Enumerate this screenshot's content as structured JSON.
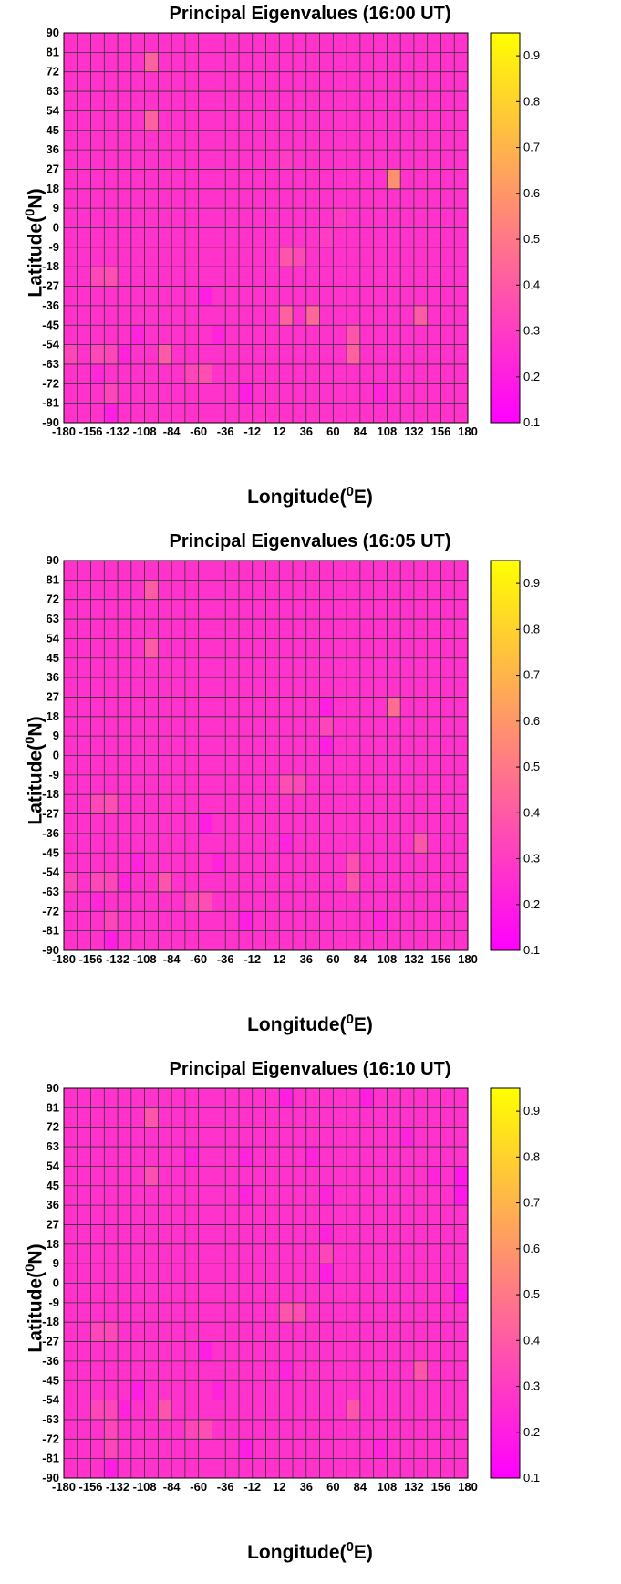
{
  "chart_data": [
    {
      "type": "heatmap",
      "title": "Principal Eigenvalues (16:00 UT)",
      "xlabel": "Longitude(0E)",
      "ylabel": "Latitude(0N)",
      "xlim": [
        -180,
        180
      ],
      "ylim": [
        -90,
        90
      ],
      "x_ticks": [
        -180,
        -156,
        -132,
        -108,
        -84,
        -60,
        -36,
        -12,
        12,
        36,
        60,
        84,
        108,
        132,
        156,
        180
      ],
      "y_ticks": [
        90,
        81,
        72,
        63,
        54,
        45,
        36,
        27,
        18,
        9,
        0,
        -9,
        -18,
        -27,
        -36,
        -45,
        -54,
        -63,
        -72,
        -81,
        -90
      ],
      "colorbar": {
        "range": [
          0.1,
          0.95
        ],
        "ticks": [
          0.1,
          0.2,
          0.3,
          0.4,
          0.5,
          0.6,
          0.7,
          0.8,
          0.9
        ]
      },
      "cell_width_deg": 12,
      "cell_height_deg": 9,
      "base_value": 0.27,
      "cells": [
        {
          "lon": -102,
          "lat": 76.5,
          "value": 0.42
        },
        {
          "lon": -102,
          "lat": 49.5,
          "value": 0.42
        },
        {
          "lon": 114,
          "lat": 22.5,
          "value": 0.58
        },
        {
          "lon": 18,
          "lat": -13.5,
          "value": 0.38
        },
        {
          "lon": 30,
          "lat": -13.5,
          "value": 0.34
        },
        {
          "lon": -150,
          "lat": -22.5,
          "value": 0.34
        },
        {
          "lon": -138,
          "lat": -22.5,
          "value": 0.36
        },
        {
          "lon": -54,
          "lat": -31.5,
          "value": 0.2
        },
        {
          "lon": 18,
          "lat": -40.5,
          "value": 0.42
        },
        {
          "lon": 42,
          "lat": -40.5,
          "value": 0.44
        },
        {
          "lon": 138,
          "lat": -40.5,
          "value": 0.4
        },
        {
          "lon": -114,
          "lat": -49.5,
          "value": 0.22
        },
        {
          "lon": -42,
          "lat": -49.5,
          "value": 0.22
        },
        {
          "lon": 78,
          "lat": -49.5,
          "value": 0.38
        },
        {
          "lon": -174,
          "lat": -58.5,
          "value": 0.33
        },
        {
          "lon": -150,
          "lat": -58.5,
          "value": 0.34
        },
        {
          "lon": -138,
          "lat": -58.5,
          "value": 0.33
        },
        {
          "lon": -126,
          "lat": -58.5,
          "value": 0.22
        },
        {
          "lon": -90,
          "lat": -58.5,
          "value": 0.4
        },
        {
          "lon": 78,
          "lat": -58.5,
          "value": 0.42
        },
        {
          "lon": -150,
          "lat": -67.5,
          "value": 0.23
        },
        {
          "lon": -66,
          "lat": -67.5,
          "value": 0.33
        },
        {
          "lon": -54,
          "lat": -67.5,
          "value": 0.36
        },
        {
          "lon": -138,
          "lat": -76.5,
          "value": 0.33
        },
        {
          "lon": -18,
          "lat": -76.5,
          "value": 0.2
        },
        {
          "lon": 102,
          "lat": -76.5,
          "value": 0.22
        },
        {
          "lon": -138,
          "lat": -85.5,
          "value": 0.2
        },
        {
          "lon": 18,
          "lat": 31.5,
          "value": 0.3
        },
        {
          "lon": 54,
          "lat": -4.5,
          "value": 0.3
        },
        {
          "lon": 66,
          "lat": 4.5,
          "value": 0.3
        }
      ]
    },
    {
      "type": "heatmap",
      "title": "Principal Eigenvalues (16:05 UT)",
      "xlabel": "Longitude(0E)",
      "ylabel": "Latitude(0N)",
      "xlim": [
        -180,
        180
      ],
      "ylim": [
        -90,
        90
      ],
      "x_ticks": [
        -180,
        -156,
        -132,
        -108,
        -84,
        -60,
        -36,
        -12,
        12,
        36,
        60,
        84,
        108,
        132,
        156,
        180
      ],
      "y_ticks": [
        90,
        81,
        72,
        63,
        54,
        45,
        36,
        27,
        18,
        9,
        0,
        -9,
        -18,
        -27,
        -36,
        -45,
        -54,
        -63,
        -72,
        -81,
        -90
      ],
      "colorbar": {
        "range": [
          0.1,
          0.95
        ],
        "ticks": [
          0.1,
          0.2,
          0.3,
          0.4,
          0.5,
          0.6,
          0.7,
          0.8,
          0.9
        ]
      },
      "cell_width_deg": 12,
      "cell_height_deg": 9,
      "base_value": 0.27,
      "cells": [
        {
          "lon": -102,
          "lat": 76.5,
          "value": 0.4
        },
        {
          "lon": -102,
          "lat": 49.5,
          "value": 0.4
        },
        {
          "lon": 114,
          "lat": 22.5,
          "value": 0.46
        },
        {
          "lon": 54,
          "lat": 22.5,
          "value": 0.2
        },
        {
          "lon": 54,
          "lat": 13.5,
          "value": 0.33
        },
        {
          "lon": 54,
          "lat": 4.5,
          "value": 0.2
        },
        {
          "lon": 18,
          "lat": -13.5,
          "value": 0.36
        },
        {
          "lon": 30,
          "lat": -13.5,
          "value": 0.34
        },
        {
          "lon": -150,
          "lat": -22.5,
          "value": 0.34
        },
        {
          "lon": -138,
          "lat": -22.5,
          "value": 0.36
        },
        {
          "lon": -54,
          "lat": -31.5,
          "value": 0.2
        },
        {
          "lon": 18,
          "lat": -40.5,
          "value": 0.22
        },
        {
          "lon": 138,
          "lat": -40.5,
          "value": 0.38
        },
        {
          "lon": -114,
          "lat": -49.5,
          "value": 0.22
        },
        {
          "lon": -42,
          "lat": -49.5,
          "value": 0.22
        },
        {
          "lon": 78,
          "lat": -49.5,
          "value": 0.36
        },
        {
          "lon": -174,
          "lat": -58.5,
          "value": 0.33
        },
        {
          "lon": -150,
          "lat": -58.5,
          "value": 0.34
        },
        {
          "lon": -138,
          "lat": -58.5,
          "value": 0.33
        },
        {
          "lon": -126,
          "lat": -58.5,
          "value": 0.22
        },
        {
          "lon": -90,
          "lat": -58.5,
          "value": 0.38
        },
        {
          "lon": 78,
          "lat": -58.5,
          "value": 0.38
        },
        {
          "lon": -150,
          "lat": -67.5,
          "value": 0.23
        },
        {
          "lon": -66,
          "lat": -67.5,
          "value": 0.33
        },
        {
          "lon": -54,
          "lat": -67.5,
          "value": 0.36
        },
        {
          "lon": -138,
          "lat": -76.5,
          "value": 0.33
        },
        {
          "lon": -18,
          "lat": -76.5,
          "value": 0.2
        },
        {
          "lon": 102,
          "lat": -76.5,
          "value": 0.22
        },
        {
          "lon": -138,
          "lat": -85.5,
          "value": 0.2
        }
      ]
    },
    {
      "type": "heatmap",
      "title": "Principal Eigenvalues (16:10 UT)",
      "xlabel": "Longitude(0E)",
      "ylabel": "Latitude(0N)",
      "xlim": [
        -180,
        180
      ],
      "ylim": [
        -90,
        90
      ],
      "x_ticks": [
        -180,
        -156,
        -132,
        -108,
        -84,
        -60,
        -36,
        -12,
        12,
        36,
        60,
        84,
        108,
        132,
        156,
        180
      ],
      "y_ticks": [
        90,
        81,
        72,
        63,
        54,
        45,
        36,
        27,
        18,
        9,
        0,
        -9,
        -18,
        -27,
        -36,
        -45,
        -54,
        -63,
        -72,
        -81,
        -90
      ],
      "colorbar": {
        "range": [
          0.1,
          0.95
        ],
        "ticks": [
          0.1,
          0.2,
          0.3,
          0.4,
          0.5,
          0.6,
          0.7,
          0.8,
          0.9
        ]
      },
      "cell_width_deg": 12,
      "cell_height_deg": 9,
      "base_value": 0.27,
      "cells": [
        {
          "lon": 18,
          "lat": 85.5,
          "value": 0.2
        },
        {
          "lon": 90,
          "lat": 85.5,
          "value": 0.2
        },
        {
          "lon": -102,
          "lat": 76.5,
          "value": 0.38
        },
        {
          "lon": 126,
          "lat": 67.5,
          "value": 0.22
        },
        {
          "lon": -66,
          "lat": 58.5,
          "value": 0.22
        },
        {
          "lon": -18,
          "lat": 58.5,
          "value": 0.22
        },
        {
          "lon": 42,
          "lat": 58.5,
          "value": 0.22
        },
        {
          "lon": -102,
          "lat": 49.5,
          "value": 0.36
        },
        {
          "lon": 150,
          "lat": 49.5,
          "value": 0.22
        },
        {
          "lon": 174,
          "lat": 49.5,
          "value": 0.18
        },
        {
          "lon": 174,
          "lat": 40.5,
          "value": 0.18
        },
        {
          "lon": -18,
          "lat": 40.5,
          "value": 0.22
        },
        {
          "lon": 54,
          "lat": 40.5,
          "value": 0.22
        },
        {
          "lon": 54,
          "lat": 22.5,
          "value": 0.22
        },
        {
          "lon": 54,
          "lat": 13.5,
          "value": 0.33
        },
        {
          "lon": 54,
          "lat": 4.5,
          "value": 0.2
        },
        {
          "lon": 174,
          "lat": -4.5,
          "value": 0.18
        },
        {
          "lon": 18,
          "lat": -13.5,
          "value": 0.38
        },
        {
          "lon": 30,
          "lat": -13.5,
          "value": 0.36
        },
        {
          "lon": -150,
          "lat": -22.5,
          "value": 0.33
        },
        {
          "lon": -138,
          "lat": -22.5,
          "value": 0.34
        },
        {
          "lon": -54,
          "lat": -31.5,
          "value": 0.2
        },
        {
          "lon": 18,
          "lat": -40.5,
          "value": 0.22
        },
        {
          "lon": 138,
          "lat": -40.5,
          "value": 0.38
        },
        {
          "lon": -114,
          "lat": -49.5,
          "value": 0.2
        },
        {
          "lon": -42,
          "lat": -49.5,
          "value": 0.22
        },
        {
          "lon": -150,
          "lat": -58.5,
          "value": 0.33
        },
        {
          "lon": -138,
          "lat": -58.5,
          "value": 0.33
        },
        {
          "lon": -126,
          "lat": -58.5,
          "value": 0.22
        },
        {
          "lon": -90,
          "lat": -58.5,
          "value": 0.38
        },
        {
          "lon": 78,
          "lat": -58.5,
          "value": 0.38
        },
        {
          "lon": -66,
          "lat": -67.5,
          "value": 0.33
        },
        {
          "lon": -54,
          "lat": -67.5,
          "value": 0.36
        },
        {
          "lon": -138,
          "lat": -67.5,
          "value": 0.33
        },
        {
          "lon": -138,
          "lat": -76.5,
          "value": 0.33
        },
        {
          "lon": -18,
          "lat": -76.5,
          "value": 0.2
        },
        {
          "lon": 102,
          "lat": -76.5,
          "value": 0.22
        },
        {
          "lon": -138,
          "lat": -85.5,
          "value": 0.2
        }
      ]
    }
  ]
}
